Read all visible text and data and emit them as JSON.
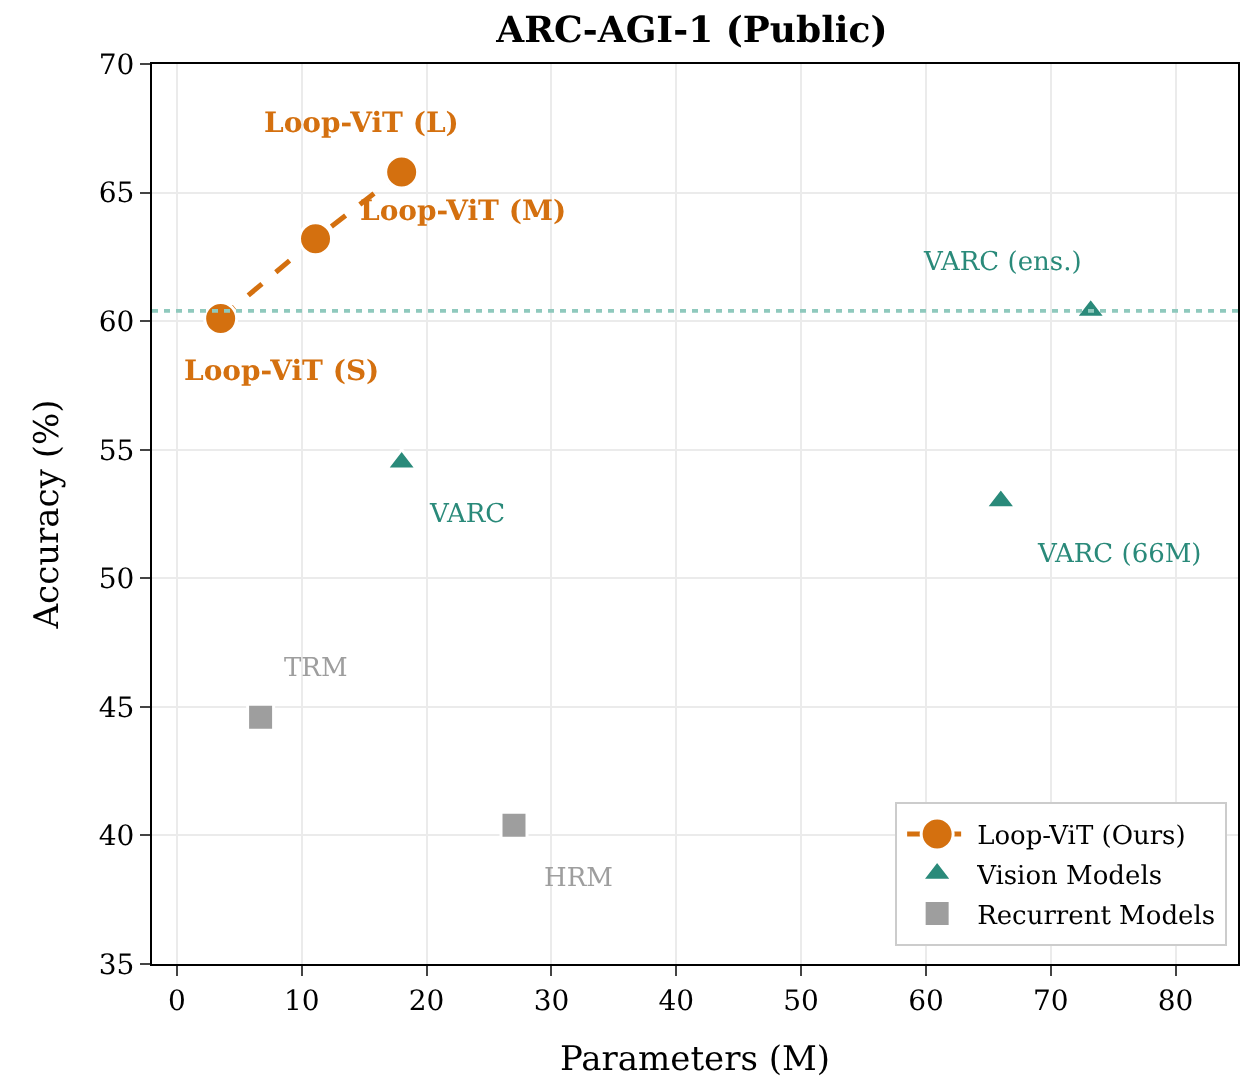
{
  "chart_data": {
    "type": "scatter",
    "title": "ARC-AGI-1 (Public)",
    "xlabel": "Parameters (M)",
    "ylabel": "Accuracy (%)",
    "xlim": [
      -2,
      85
    ],
    "ylim": [
      35,
      70
    ],
    "xticks": [
      0,
      10,
      20,
      30,
      40,
      50,
      60,
      70,
      80
    ],
    "yticks": [
      35,
      40,
      45,
      50,
      55,
      60,
      65,
      70
    ],
    "grid": true,
    "legend": "bottom right",
    "series": [
      {
        "name": "Loop-ViT (Ours)",
        "type": "line",
        "color": "#d4700f",
        "marker": "circle",
        "line_style": "dashed",
        "x": [
          3.5,
          11.1,
          18.0
        ],
        "values": [
          60.1,
          63.2,
          65.8
        ]
      },
      {
        "name": "Vision Models",
        "color": "#2a8a7a",
        "marker": "triangle",
        "x": [
          18,
          66,
          73.2
        ],
        "values": [
          54.5,
          53.0,
          60.4
        ]
      },
      {
        "name": "Recurrent Models",
        "color": "#9e9e9e",
        "marker": "square",
        "x": [
          6.7,
          27
        ],
        "values": [
          44.6,
          40.4
        ]
      }
    ],
    "ref_lines": [
      {
        "axis": "y",
        "value": 60.4,
        "color": "#8fc9bd",
        "line_style": "dotted"
      }
    ],
    "annotations": [
      {
        "text": "Loop-ViT (L)",
        "x": 18.0,
        "y": 65.8
      },
      {
        "text": "Loop-ViT (M)",
        "x": 11.1,
        "y": 63.2
      },
      {
        "text": "Loop-ViT (S)",
        "x": 3.5,
        "y": 60.1
      },
      {
        "text": "VARC (ens.)",
        "x": 73.2,
        "y": 60.4
      },
      {
        "text": "VARC",
        "x": 18,
        "y": 54.5
      },
      {
        "text": "VARC (66M)",
        "x": 66,
        "y": 53.0
      },
      {
        "text": "TRM",
        "x": 6.7,
        "y": 44.6
      },
      {
        "text": "HRM",
        "x": 27,
        "y": 40.4
      }
    ]
  }
}
